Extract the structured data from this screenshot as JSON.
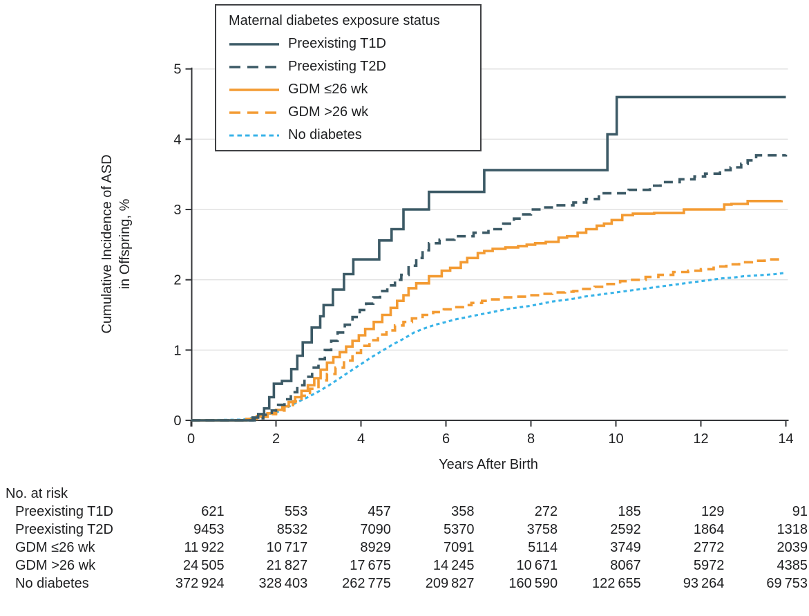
{
  "colors": {
    "dark_slate": "#3C5A66",
    "orange": "#F39B33",
    "light_blue": "#38B3E8",
    "grid": "#E2E2E2",
    "axis": "#333538",
    "text": "#1E1F21",
    "legend_border": "#3F4043",
    "background": "#FFFFFF"
  },
  "legend": {
    "title": "Maternal diabetes exposure status"
  },
  "chart_data": {
    "type": "line",
    "subtype": "cumulative-incidence-step-curves",
    "title": "",
    "xlabel": "Years After Birth",
    "ylabel_line1": "Cumulative Incidence of ASD",
    "ylabel_line2": "in Offspring, %",
    "xlim": [
      0,
      14
    ],
    "ylim": [
      0,
      5
    ],
    "x_ticks": [
      0,
      2,
      4,
      6,
      8,
      10,
      12,
      14
    ],
    "y_ticks": [
      0,
      1,
      2,
      3,
      4,
      5
    ],
    "grid": "horizontal",
    "legend_position": "top-left-box",
    "series": [
      {
        "name": "preexisting-t1d",
        "label": "Preexisting T1D",
        "color": "#3C5A66",
        "line": "solid",
        "interp": "step",
        "points": [
          [
            0,
            0
          ],
          [
            1.45,
            0.04
          ],
          [
            1.58,
            0.09
          ],
          [
            1.72,
            0.17
          ],
          [
            1.84,
            0.33
          ],
          [
            1.95,
            0.52
          ],
          [
            2.14,
            0.56
          ],
          [
            2.36,
            0.73
          ],
          [
            2.5,
            0.92
          ],
          [
            2.63,
            1.11
          ],
          [
            2.84,
            1.32
          ],
          [
            3.04,
            1.48
          ],
          [
            3.12,
            1.64
          ],
          [
            3.34,
            1.86
          ],
          [
            3.6,
            2.08
          ],
          [
            3.82,
            2.29
          ],
          [
            4.43,
            2.56
          ],
          [
            4.72,
            2.72
          ],
          [
            5.0,
            3.0
          ],
          [
            5.6,
            3.25
          ],
          [
            6.9,
            3.56
          ],
          [
            9.8,
            4.07
          ],
          [
            10.02,
            4.6
          ],
          [
            14,
            4.6
          ]
        ]
      },
      {
        "name": "preexisting-t2d",
        "label": "Preexisting T2D",
        "color": "#3C5A66",
        "line": "dashed",
        "interp": "step",
        "points": [
          [
            0,
            0
          ],
          [
            1.5,
            0.03
          ],
          [
            1.7,
            0.08
          ],
          [
            1.9,
            0.14
          ],
          [
            2.05,
            0.22
          ],
          [
            2.2,
            0.3
          ],
          [
            2.35,
            0.4
          ],
          [
            2.5,
            0.5
          ],
          [
            2.67,
            0.62
          ],
          [
            2.85,
            0.75
          ],
          [
            3.0,
            0.87
          ],
          [
            3.15,
            1.0
          ],
          [
            3.3,
            1.13
          ],
          [
            3.45,
            1.25
          ],
          [
            3.62,
            1.36
          ],
          [
            3.8,
            1.47
          ],
          [
            3.97,
            1.57
          ],
          [
            4.12,
            1.66
          ],
          [
            4.29,
            1.75
          ],
          [
            4.45,
            1.84
          ],
          [
            4.62,
            1.92
          ],
          [
            4.8,
            2.0
          ],
          [
            4.95,
            2.07
          ],
          [
            5.12,
            2.2
          ],
          [
            5.3,
            2.31
          ],
          [
            5.45,
            2.42
          ],
          [
            5.6,
            2.52
          ],
          [
            5.85,
            2.57
          ],
          [
            6.2,
            2.62
          ],
          [
            6.65,
            2.67
          ],
          [
            7.0,
            2.72
          ],
          [
            7.35,
            2.8
          ],
          [
            7.6,
            2.87
          ],
          [
            7.78,
            2.93
          ],
          [
            8.0,
            3.0
          ],
          [
            8.3,
            3.03
          ],
          [
            8.6,
            3.06
          ],
          [
            9.0,
            3.1
          ],
          [
            9.3,
            3.15
          ],
          [
            9.6,
            3.23
          ],
          [
            10.3,
            3.28
          ],
          [
            10.8,
            3.34
          ],
          [
            11.05,
            3.39
          ],
          [
            11.5,
            3.43
          ],
          [
            11.85,
            3.47
          ],
          [
            12.1,
            3.51
          ],
          [
            12.45,
            3.56
          ],
          [
            12.7,
            3.6
          ],
          [
            12.95,
            3.65
          ],
          [
            13.1,
            3.7
          ],
          [
            13.3,
            3.77
          ],
          [
            14,
            3.78
          ]
        ]
      },
      {
        "name": "gdm-le-26wk",
        "label": "GDM ≤26 wk",
        "color": "#F39B33",
        "line": "solid",
        "interp": "step",
        "points": [
          [
            0,
            0
          ],
          [
            1.3,
            0.02
          ],
          [
            1.55,
            0.06
          ],
          [
            1.8,
            0.1
          ],
          [
            2.0,
            0.15
          ],
          [
            2.15,
            0.2
          ],
          [
            2.3,
            0.26
          ],
          [
            2.45,
            0.33
          ],
          [
            2.6,
            0.42
          ],
          [
            2.75,
            0.5
          ],
          [
            2.9,
            0.6
          ],
          [
            3.05,
            0.72
          ],
          [
            3.2,
            0.82
          ],
          [
            3.35,
            0.9
          ],
          [
            3.5,
            0.97
          ],
          [
            3.65,
            1.05
          ],
          [
            3.8,
            1.13
          ],
          [
            3.95,
            1.21
          ],
          [
            4.1,
            1.3
          ],
          [
            4.3,
            1.4
          ],
          [
            4.5,
            1.5
          ],
          [
            4.7,
            1.6
          ],
          [
            4.85,
            1.7
          ],
          [
            5.0,
            1.78
          ],
          [
            5.12,
            1.88
          ],
          [
            5.3,
            1.95
          ],
          [
            5.6,
            2.05
          ],
          [
            5.9,
            2.13
          ],
          [
            6.1,
            2.17
          ],
          [
            6.35,
            2.25
          ],
          [
            6.5,
            2.31
          ],
          [
            6.75,
            2.38
          ],
          [
            6.9,
            2.41
          ],
          [
            7.1,
            2.44
          ],
          [
            7.4,
            2.46
          ],
          [
            7.7,
            2.48
          ],
          [
            7.9,
            2.5
          ],
          [
            8.1,
            2.52
          ],
          [
            8.35,
            2.54
          ],
          [
            8.65,
            2.6
          ],
          [
            8.85,
            2.62
          ],
          [
            9.1,
            2.67
          ],
          [
            9.3,
            2.72
          ],
          [
            9.55,
            2.77
          ],
          [
            9.72,
            2.8
          ],
          [
            9.9,
            2.85
          ],
          [
            10.15,
            2.92
          ],
          [
            10.4,
            2.94
          ],
          [
            10.9,
            2.95
          ],
          [
            11.6,
            3.0
          ],
          [
            12.55,
            3.07
          ],
          [
            12.72,
            3.08
          ],
          [
            13.1,
            3.12
          ],
          [
            13.9,
            3.13
          ]
        ]
      },
      {
        "name": "gdm-gt-26wk",
        "label": "GDM >26 wk",
        "color": "#F39B33",
        "line": "dashed",
        "interp": "step",
        "points": [
          [
            0,
            0
          ],
          [
            1.3,
            0.02
          ],
          [
            1.55,
            0.05
          ],
          [
            1.8,
            0.09
          ],
          [
            2.0,
            0.14
          ],
          [
            2.2,
            0.2
          ],
          [
            2.4,
            0.27
          ],
          [
            2.6,
            0.35
          ],
          [
            2.8,
            0.45
          ],
          [
            3.0,
            0.57
          ],
          [
            3.2,
            0.66
          ],
          [
            3.4,
            0.75
          ],
          [
            3.6,
            0.85
          ],
          [
            3.8,
            0.96
          ],
          [
            4.0,
            1.06
          ],
          [
            4.2,
            1.14
          ],
          [
            4.4,
            1.22
          ],
          [
            4.6,
            1.28
          ],
          [
            4.8,
            1.35
          ],
          [
            5.0,
            1.4
          ],
          [
            5.2,
            1.45
          ],
          [
            5.45,
            1.5
          ],
          [
            5.7,
            1.54
          ],
          [
            5.95,
            1.58
          ],
          [
            6.15,
            1.61
          ],
          [
            6.4,
            1.64
          ],
          [
            6.6,
            1.67
          ],
          [
            6.85,
            1.7
          ],
          [
            7.05,
            1.72
          ],
          [
            7.35,
            1.75
          ],
          [
            7.6,
            1.76
          ],
          [
            7.9,
            1.78
          ],
          [
            8.2,
            1.8
          ],
          [
            8.5,
            1.82
          ],
          [
            8.8,
            1.83
          ],
          [
            9.0,
            1.84
          ],
          [
            9.2,
            1.87
          ],
          [
            9.5,
            1.9
          ],
          [
            9.8,
            1.94
          ],
          [
            10.1,
            1.98
          ],
          [
            10.35,
            2.0
          ],
          [
            10.7,
            2.04
          ],
          [
            11.0,
            2.07
          ],
          [
            11.35,
            2.11
          ],
          [
            11.7,
            2.13
          ],
          [
            12.0,
            2.15
          ],
          [
            12.3,
            2.19
          ],
          [
            12.6,
            2.22
          ],
          [
            12.9,
            2.25
          ],
          [
            13.2,
            2.27
          ],
          [
            13.5,
            2.29
          ],
          [
            13.9,
            2.29
          ]
        ]
      },
      {
        "name": "no-diabetes",
        "label": "No diabetes",
        "color": "#38B3E8",
        "line": "dotted",
        "interp": "linear",
        "points": [
          [
            0,
            0
          ],
          [
            1.2,
            0.01
          ],
          [
            1.5,
            0.04
          ],
          [
            1.75,
            0.08
          ],
          [
            2.0,
            0.11
          ],
          [
            2.25,
            0.18
          ],
          [
            2.5,
            0.26
          ],
          [
            2.75,
            0.33
          ],
          [
            3.0,
            0.41
          ],
          [
            3.25,
            0.5
          ],
          [
            3.5,
            0.6
          ],
          [
            3.75,
            0.7
          ],
          [
            4.0,
            0.8
          ],
          [
            4.25,
            0.9
          ],
          [
            4.5,
            0.99
          ],
          [
            4.75,
            1.08
          ],
          [
            5.0,
            1.16
          ],
          [
            5.25,
            1.25
          ],
          [
            5.5,
            1.31
          ],
          [
            5.75,
            1.36
          ],
          [
            6.0,
            1.4
          ],
          [
            6.25,
            1.44
          ],
          [
            6.5,
            1.47
          ],
          [
            6.75,
            1.5
          ],
          [
            7.0,
            1.53
          ],
          [
            7.25,
            1.56
          ],
          [
            7.5,
            1.59
          ],
          [
            7.75,
            1.61
          ],
          [
            8.0,
            1.63
          ],
          [
            8.25,
            1.66
          ],
          [
            8.5,
            1.69
          ],
          [
            8.75,
            1.71
          ],
          [
            9.0,
            1.73
          ],
          [
            9.25,
            1.76
          ],
          [
            9.5,
            1.78
          ],
          [
            9.75,
            1.8
          ],
          [
            10.0,
            1.82
          ],
          [
            10.25,
            1.84
          ],
          [
            10.5,
            1.86
          ],
          [
            10.75,
            1.88
          ],
          [
            11.0,
            1.9
          ],
          [
            11.25,
            1.92
          ],
          [
            11.5,
            1.94
          ],
          [
            11.75,
            1.96
          ],
          [
            12.0,
            1.98
          ],
          [
            12.25,
            2.0
          ],
          [
            12.5,
            2.02
          ],
          [
            12.75,
            2.03
          ],
          [
            13.0,
            2.05
          ],
          [
            13.25,
            2.06
          ],
          [
            13.5,
            2.07
          ],
          [
            13.75,
            2.08
          ],
          [
            14,
            2.1
          ]
        ]
      }
    ]
  },
  "at_risk_table": {
    "header": "No. at risk",
    "time_points_years": [
      0,
      2,
      4,
      6,
      8,
      10,
      12,
      14
    ],
    "rows": [
      {
        "label": "Preexisting T1D",
        "values": [
          "621",
          "553",
          "457",
          "358",
          "272",
          "185",
          "129",
          "91"
        ]
      },
      {
        "label": "Preexisting T2D",
        "values": [
          "9453",
          "8532",
          "7090",
          "5370",
          "3758",
          "2592",
          "1864",
          "1318"
        ]
      },
      {
        "label": "GDM ≤26 wk",
        "values": [
          "11 922",
          "10 717",
          "8929",
          "7091",
          "5114",
          "3749",
          "2772",
          "2039"
        ]
      },
      {
        "label": "GDM >26 wk",
        "values": [
          "24 505",
          "21 827",
          "17 675",
          "14 245",
          "10 671",
          "8067",
          "5972",
          "4385"
        ]
      },
      {
        "label": "No diabetes",
        "values": [
          "372 924",
          "328 403",
          "262 775",
          "209 827",
          "160 590",
          "122 655",
          "93 264",
          "69 753"
        ]
      }
    ]
  }
}
